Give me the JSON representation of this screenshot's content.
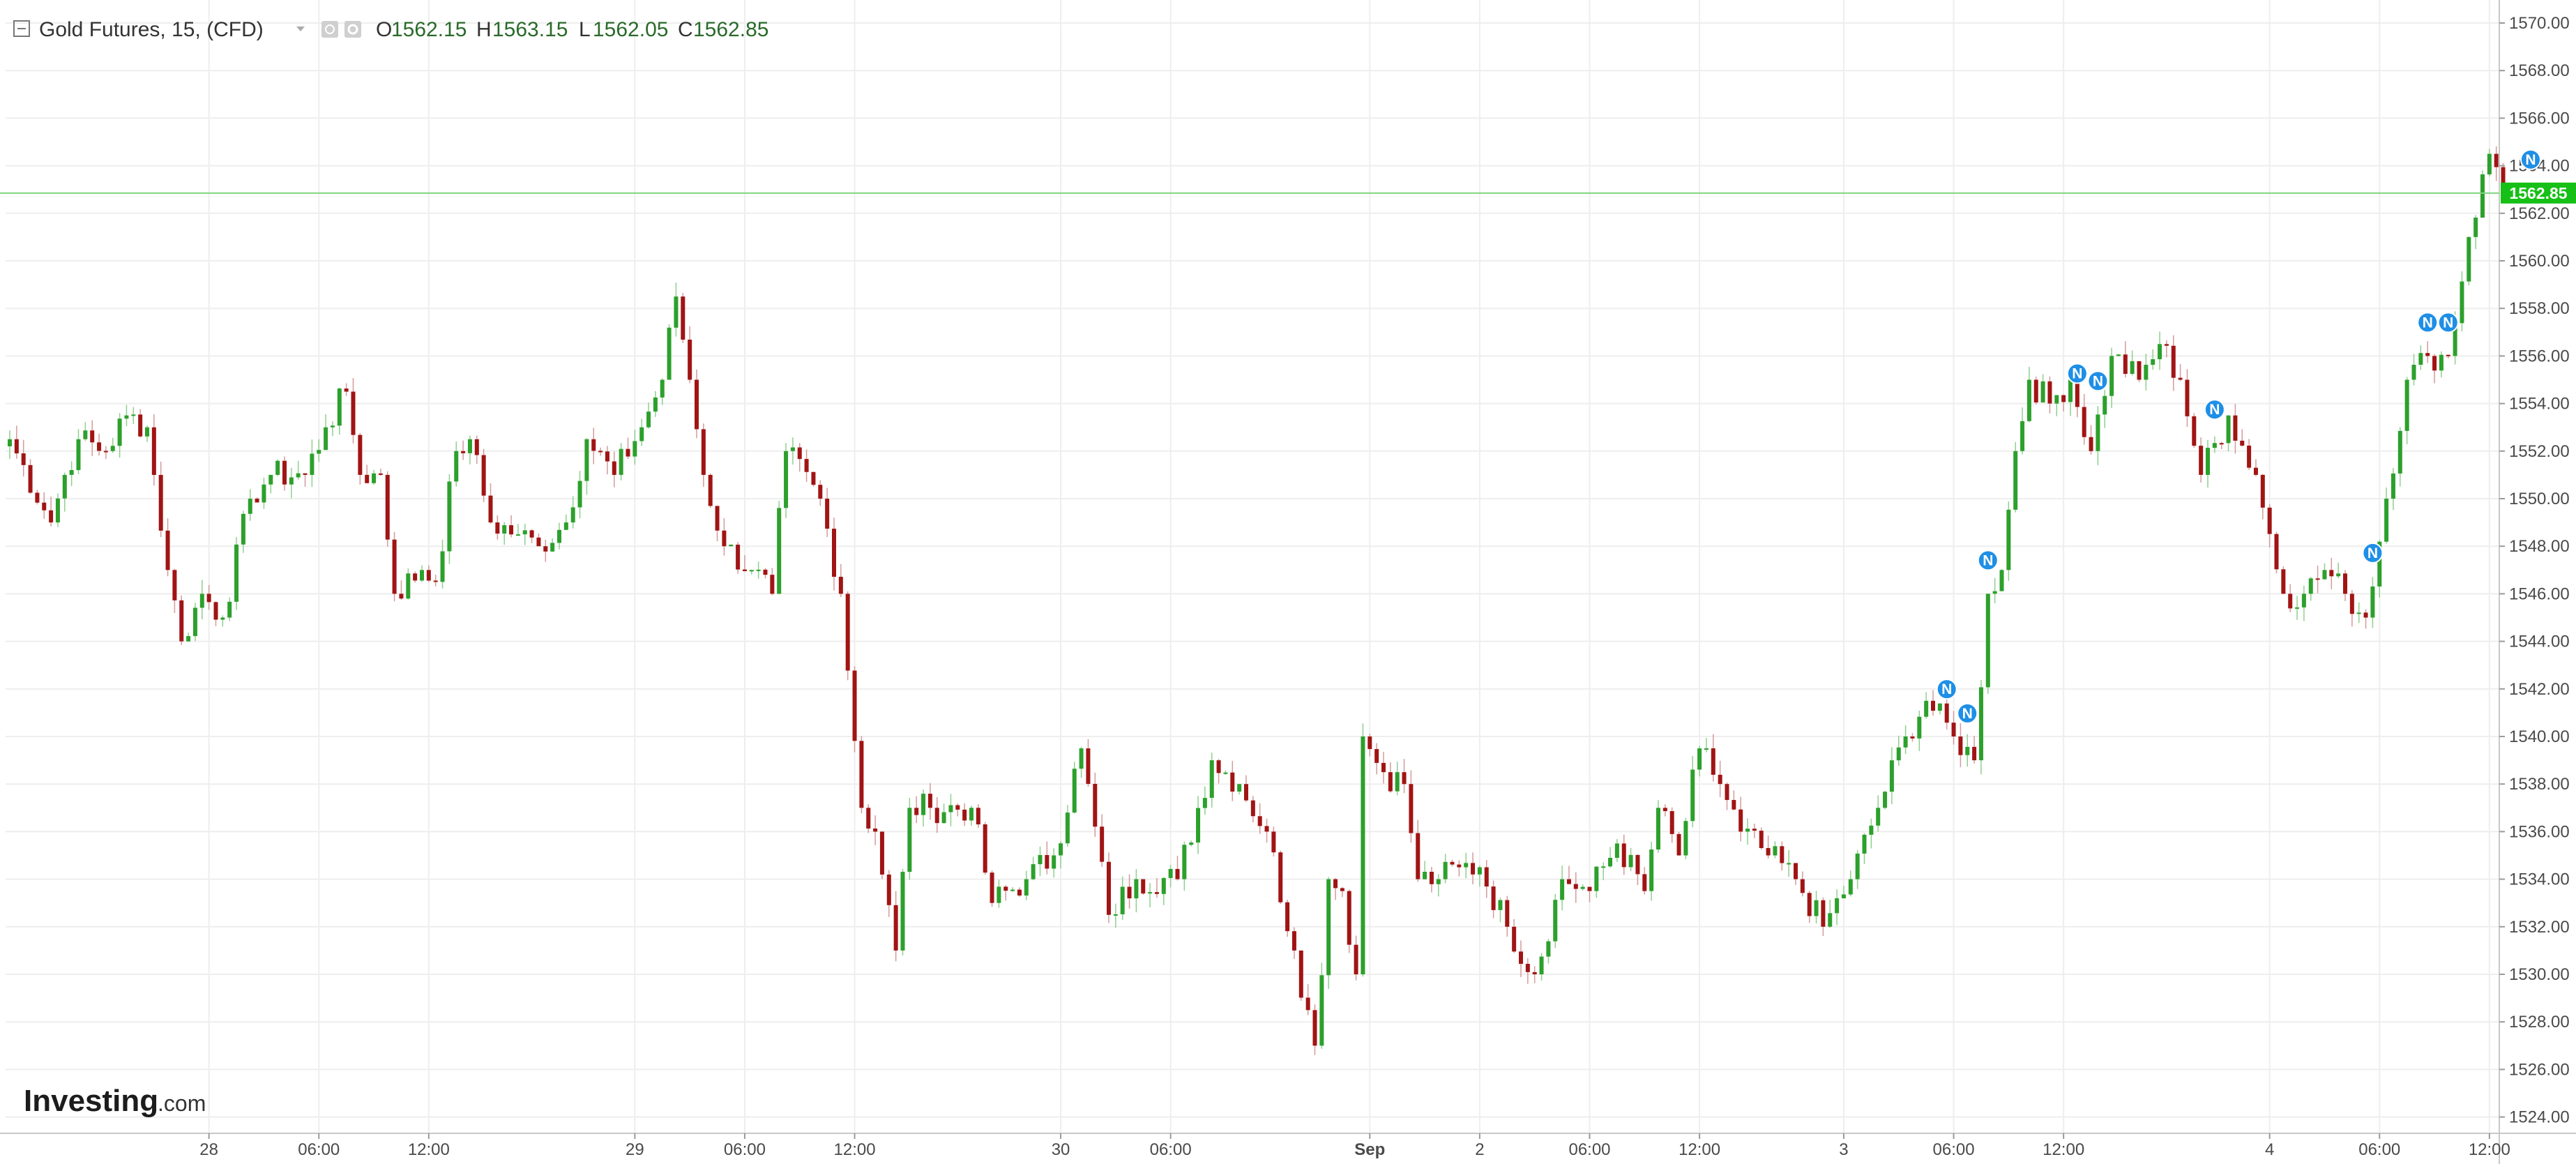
{
  "legend": {
    "symbol": "Gold Futures, 15, (CFD)",
    "open_label": "O",
    "open_value": "1562.15",
    "high_label": "H",
    "high_value": "1563.15",
    "low_label": "L",
    "low_value": "1562.05",
    "close_label": "C",
    "close_value": "1562.85"
  },
  "brand": {
    "name": "Investing",
    "suffix": ".com"
  },
  "last_price_label": "1562.85",
  "colors": {
    "up": "#2ca02c",
    "down": "#a11414",
    "grid": "#eeeeee",
    "last_price_line": "#7fd47f",
    "last_price_tag": "#16c016",
    "news_marker": "#1e8fe6"
  },
  "icons": [
    "collapse-icon",
    "dropdown-icon",
    "visibility-icon",
    "settings-icon",
    "news-marker-icon"
  ],
  "chart_data": {
    "type": "candlestick",
    "interval": "15",
    "ylim": [
      1524,
      1571
    ],
    "y_ticks": [
      "1524.00",
      "1526.00",
      "1528.00",
      "1530.00",
      "1532.00",
      "1534.00",
      "1536.00",
      "1538.00",
      "1540.00",
      "1542.00",
      "1544.00",
      "1546.00",
      "1548.00",
      "1550.00",
      "1552.00",
      "1554.00",
      "1556.00",
      "1558.00",
      "1560.00",
      "1562.00",
      "1564.00",
      "1566.00",
      "1568.00",
      "1570.00"
    ],
    "x_ticks": [
      {
        "label": "28",
        "bar": 29,
        "bold": false
      },
      {
        "label": "06:00",
        "bar": 45,
        "bold": false
      },
      {
        "label": "12:00",
        "bar": 61,
        "bold": false
      },
      {
        "label": "29",
        "bar": 91,
        "bold": false
      },
      {
        "label": "06:00",
        "bar": 107,
        "bold": false
      },
      {
        "label": "12:00",
        "bar": 123,
        "bold": false
      },
      {
        "label": "30",
        "bar": 153,
        "bold": false
      },
      {
        "label": "06:00",
        "bar": 169,
        "bold": false
      },
      {
        "label": "Sep",
        "bar": 198,
        "bold": true
      },
      {
        "label": "2",
        "bar": 214,
        "bold": false
      },
      {
        "label": "06:00",
        "bar": 230,
        "bold": false
      },
      {
        "label": "12:00",
        "bar": 246,
        "bold": false
      },
      {
        "label": "3",
        "bar": 267,
        "bold": false
      },
      {
        "label": "06:00",
        "bar": 283,
        "bold": false
      },
      {
        "label": "12:00",
        "bar": 299,
        "bold": false
      },
      {
        "label": "4",
        "bar": 329,
        "bold": false
      },
      {
        "label": "06:00",
        "bar": 345,
        "bold": false
      },
      {
        "label": "12:00",
        "bar": 361,
        "bold": false
      }
    ],
    "last_price": 1562.85,
    "close_anchors": [
      [
        0,
        1552.5
      ],
      [
        6,
        1549
      ],
      [
        8,
        1551
      ],
      [
        10,
        1552.5
      ],
      [
        14,
        1552
      ],
      [
        17,
        1553.5
      ],
      [
        20,
        1553
      ],
      [
        23,
        1547
      ],
      [
        25,
        1544
      ],
      [
        28,
        1546
      ],
      [
        31,
        1545
      ],
      [
        35,
        1550
      ],
      [
        38,
        1551
      ],
      [
        43,
        1551
      ],
      [
        46,
        1553
      ],
      [
        49,
        1554.5
      ],
      [
        51,
        1551
      ],
      [
        54,
        1551
      ],
      [
        56,
        1546
      ],
      [
        60,
        1547
      ],
      [
        62,
        1546.5
      ],
      [
        65,
        1552
      ],
      [
        67,
        1552.5
      ],
      [
        70,
        1549
      ],
      [
        74,
        1548.5
      ],
      [
        77,
        1548
      ],
      [
        81,
        1549
      ],
      [
        84,
        1552.5
      ],
      [
        88,
        1551
      ],
      [
        92,
        1553
      ],
      [
        95,
        1555
      ],
      [
        97,
        1558.5
      ],
      [
        99,
        1555
      ],
      [
        101,
        1551
      ],
      [
        104,
        1548
      ],
      [
        108,
        1547
      ],
      [
        111,
        1546
      ],
      [
        113,
        1552
      ],
      [
        118,
        1550
      ],
      [
        121,
        1546
      ],
      [
        124,
        1537
      ],
      [
        126,
        1536
      ],
      [
        129,
        1531
      ],
      [
        131,
        1537
      ],
      [
        134,
        1537
      ],
      [
        140,
        1537
      ],
      [
        143,
        1533
      ],
      [
        148,
        1534
      ],
      [
        152,
        1535
      ],
      [
        156,
        1539.5
      ],
      [
        160,
        1532.5
      ],
      [
        164,
        1534
      ],
      [
        170,
        1534
      ],
      [
        175,
        1539
      ],
      [
        179,
        1538
      ],
      [
        183,
        1536
      ],
      [
        187,
        1531
      ],
      [
        190,
        1527
      ],
      [
        192,
        1534
      ],
      [
        194,
        1533.5
      ],
      [
        196,
        1530
      ],
      [
        197,
        1540
      ],
      [
        200,
        1538.5
      ],
      [
        203,
        1538
      ],
      [
        205,
        1534
      ],
      [
        208,
        1534
      ],
      [
        211,
        1534.5
      ],
      [
        214,
        1534.5
      ],
      [
        218,
        1532
      ],
      [
        222,
        1530
      ],
      [
        226,
        1534
      ],
      [
        230,
        1533.5
      ],
      [
        234,
        1535.5
      ],
      [
        238,
        1533.5
      ],
      [
        240,
        1537
      ],
      [
        243,
        1535
      ],
      [
        246,
        1539.5
      ],
      [
        249,
        1538
      ],
      [
        252,
        1536
      ],
      [
        256,
        1535
      ],
      [
        260,
        1534
      ],
      [
        264,
        1532
      ],
      [
        268,
        1534
      ],
      [
        272,
        1537
      ],
      [
        276,
        1540
      ],
      [
        279,
        1541.5
      ],
      [
        283,
        1540
      ],
      [
        286,
        1539
      ],
      [
        288,
        1546
      ],
      [
        290,
        1547
      ],
      [
        292,
        1552
      ],
      [
        294,
        1555
      ],
      [
        297,
        1554
      ],
      [
        300,
        1555
      ],
      [
        303,
        1552
      ],
      [
        306,
        1556
      ],
      [
        310,
        1555
      ],
      [
        313,
        1556.5
      ],
      [
        316,
        1555
      ],
      [
        319,
        1551
      ],
      [
        323,
        1553.5
      ],
      [
        327,
        1551
      ],
      [
        331,
        1546
      ],
      [
        334,
        1546
      ],
      [
        337,
        1547
      ],
      [
        340,
        1546
      ],
      [
        343,
        1545
      ],
      [
        346,
        1550
      ],
      [
        349,
        1555
      ],
      [
        352,
        1556
      ],
      [
        355,
        1556
      ],
      [
        358,
        1561
      ],
      [
        361,
        1564.5
      ],
      [
        364,
        1562.85
      ]
    ],
    "news_markers_at_bars": [
      282,
      285,
      288,
      301,
      304,
      321,
      344,
      352,
      355,
      367
    ]
  }
}
